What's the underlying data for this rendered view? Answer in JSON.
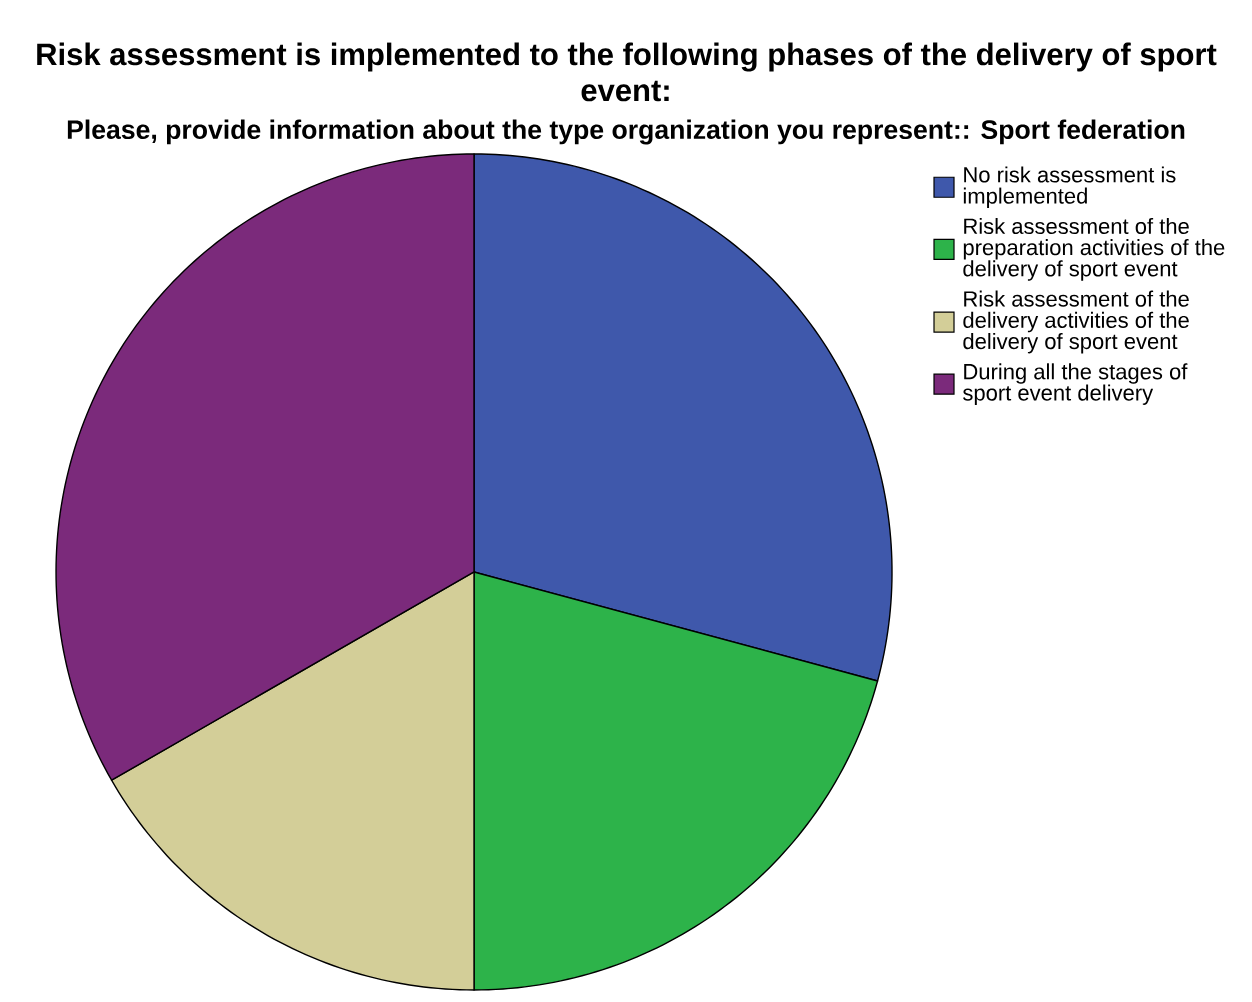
{
  "chart_data": {
    "type": "pie",
    "title": "Risk assessment is implemented to the following phases of the delivery of sport event:",
    "subtitle": "Please, provide information about the type organization you represent:: Sport federation",
    "categories": [
      "No risk assessment is implemented",
      "Risk assessment of the preparation activities of the delivery of sport event",
      "Risk assessment of the delivery activities of the delivery of sport event",
      "During all the stages of sport event delivery"
    ],
    "values": [
      29.2,
      20.8,
      16.7,
      33.3
    ],
    "colors": [
      "#3f58ab",
      "#2db34a",
      "#d3ce98",
      "#7b2a7b"
    ],
    "legend": "right"
  }
}
